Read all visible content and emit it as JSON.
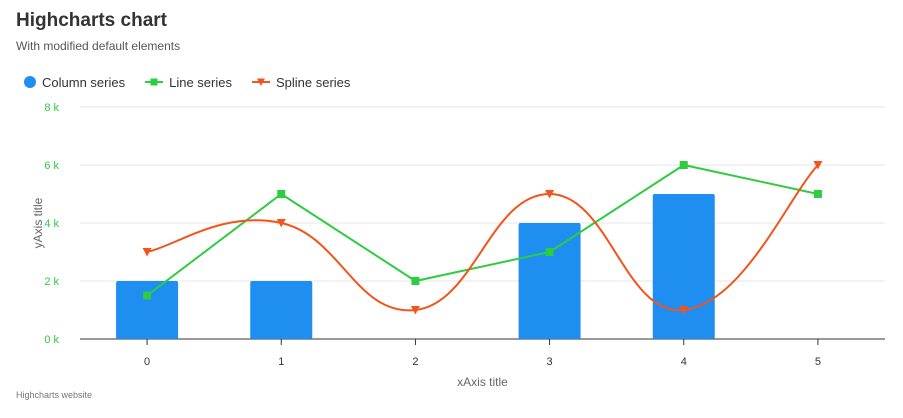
{
  "chart_data": {
    "type": "bar",
    "title": "Highcharts chart",
    "subtitle": "With modified default elements",
    "xlabel": "xAxis title",
    "ylabel": "yAxis title",
    "categories": [
      "0",
      "1",
      "2",
      "3",
      "4",
      "5"
    ],
    "ylim": [
      0,
      8000
    ],
    "y_ticks": [
      "0 k",
      "2 k",
      "4 k",
      "6 k",
      "8 k"
    ],
    "series": [
      {
        "name": "Column series",
        "type": "column",
        "color": "#1f8ef1",
        "values": [
          2000,
          2000,
          null,
          4000,
          5000,
          null
        ]
      },
      {
        "name": "Line series",
        "type": "line",
        "color": "#2ecc40",
        "marker": "square",
        "values": [
          1500,
          5000,
          2000,
          3000,
          6000,
          5000
        ]
      },
      {
        "name": "Spline series",
        "type": "spline",
        "color": "#f2541b",
        "marker": "triangle-down",
        "values": [
          3000,
          4000,
          1000,
          5000,
          1000,
          6000
        ]
      }
    ],
    "legend_position": "top-left",
    "grid": true,
    "credits": "Highcharts website"
  },
  "colors": {
    "y_axis_labels": "#2ecc40",
    "grid": "#e6e6e6",
    "axis_line": "#333333"
  }
}
